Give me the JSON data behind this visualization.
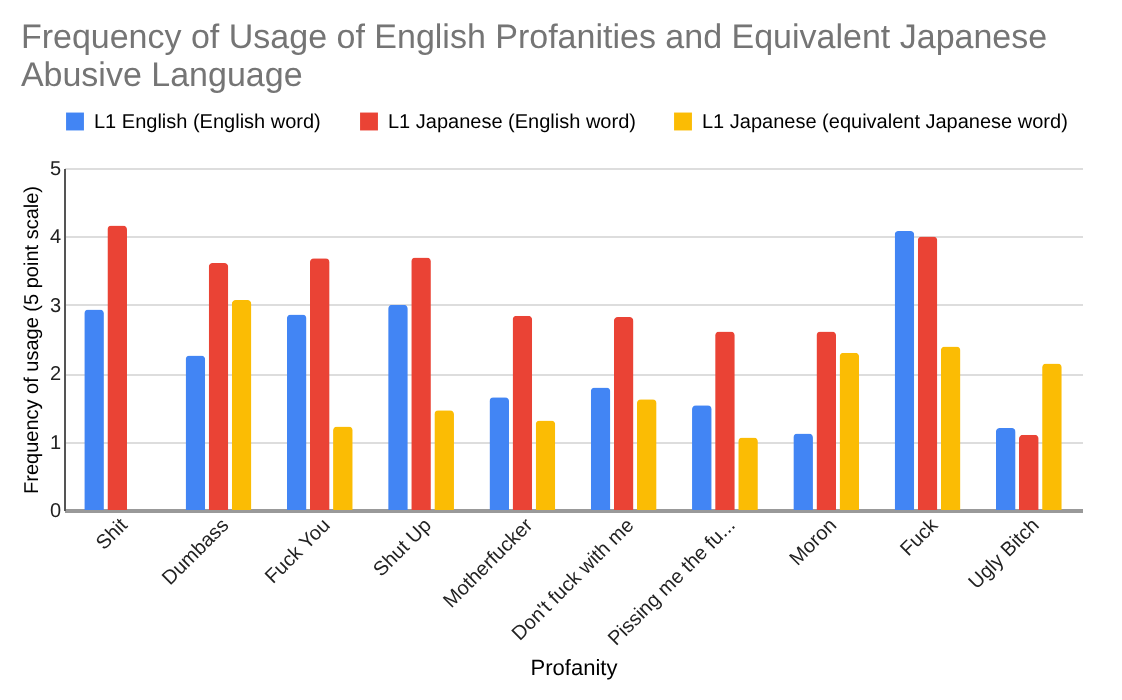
{
  "chart_data": {
    "type": "bar",
    "title": "Frequency of Usage of English Profanities and Equivalent Japanese Abusive Language",
    "xlabel": "Profanity",
    "ylabel": "Frequency of usage (5 point scale)",
    "categories": [
      "Shit",
      "Dumbass",
      "Fuck You",
      "Shut Up",
      "Motherfucker",
      "Don't fuck with me",
      "Pissing me the fu...",
      "Moron",
      "Fuck",
      "Ugly Bitch"
    ],
    "series": [
      {
        "name": "L1 English (English word)",
        "color": "#4285f4",
        "values": [
          2.93,
          2.26,
          2.86,
          3.0,
          1.65,
          1.79,
          1.53,
          1.12,
          4.08,
          1.2
        ]
      },
      {
        "name": "L1 Japanese (English word)",
        "color": "#ea4335",
        "values": [
          4.16,
          3.61,
          3.68,
          3.69,
          2.84,
          2.82,
          2.61,
          2.61,
          4.0,
          1.1
        ]
      },
      {
        "name": "L1 Japanese (equivalent Japanese word)",
        "color": "#fbbc04",
        "values": [
          null,
          3.07,
          1.22,
          1.46,
          1.31,
          1.62,
          1.06,
          2.3,
          2.39,
          2.14
        ]
      }
    ],
    "ylim": [
      0,
      5
    ],
    "yticks": [
      0,
      1,
      2,
      3,
      4,
      5
    ],
    "grid": "y",
    "legend": "top"
  }
}
